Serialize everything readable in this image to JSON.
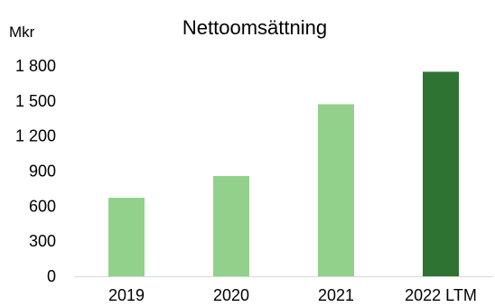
{
  "chart_data": {
    "type": "bar",
    "title": "Nettoomsättning",
    "unit_label": "Mkr",
    "xlabel": "",
    "ylabel": "",
    "categories": [
      "2019",
      "2020",
      "2021",
      "2022 LTM"
    ],
    "values": [
      672,
      858,
      1472,
      1750
    ],
    "ylim": [
      0,
      1800
    ],
    "yticks": [
      0,
      300,
      600,
      900,
      1200,
      1500,
      1800
    ],
    "ytick_labels": [
      "0",
      "300",
      "600",
      "900",
      "1 200",
      "1 500",
      "1 800"
    ],
    "bar_colors": [
      "#92d18b",
      "#92d18b",
      "#92d18b",
      "#2e7332"
    ],
    "axis_color": "#d9d9d9",
    "grid": false,
    "legend": "none"
  }
}
